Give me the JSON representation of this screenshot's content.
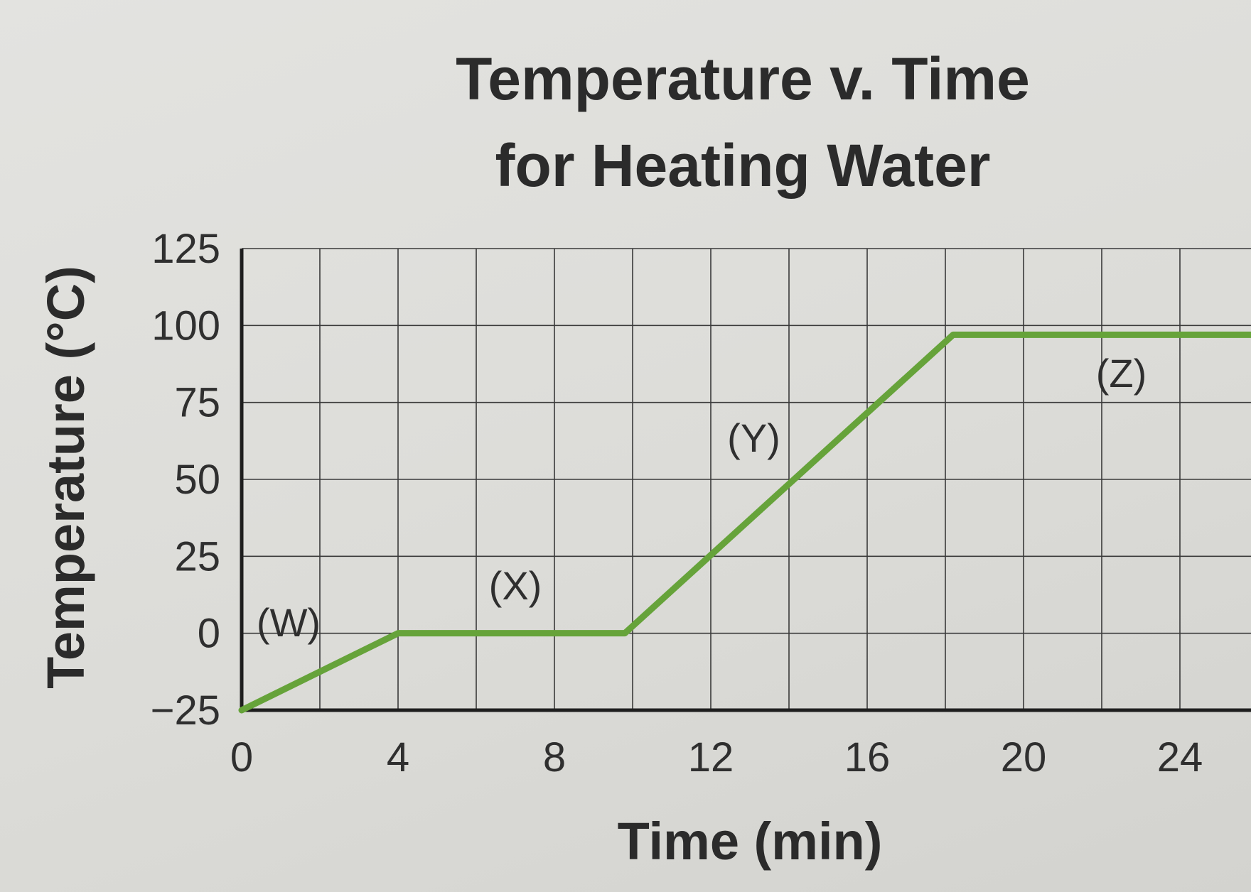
{
  "chart_data": {
    "type": "line",
    "title_lines": [
      "Temperature v. Time",
      "for Heating Water"
    ],
    "xlabel": "Time (min)",
    "ylabel": "Temperature (°C)",
    "xlim": [
      0,
      26
    ],
    "ylim": [
      -25,
      125
    ],
    "x_ticks": [
      "0",
      "4",
      "8",
      "12",
      "16",
      "20",
      "24"
    ],
    "x_tick_values": [
      0,
      4,
      8,
      12,
      16,
      20,
      24
    ],
    "y_ticks": [
      "125",
      "100",
      "75",
      "50",
      "25",
      "0",
      "−25"
    ],
    "y_tick_values": [
      125,
      100,
      75,
      50,
      25,
      0,
      -25
    ],
    "grid": true,
    "series": [
      {
        "x": [
          0,
          4,
          9.8,
          18.2,
          26
        ],
        "y": [
          -25,
          0,
          0,
          97,
          97
        ]
      }
    ],
    "annotations": [
      {
        "text": "(W)",
        "x": 1.2,
        "y": -1
      },
      {
        "text": "(X)",
        "x": 7,
        "y": 11
      },
      {
        "text": "(Y)",
        "x": 13.1,
        "y": 59
      },
      {
        "text": "(Z)",
        "x": 22.5,
        "y": 80
      }
    ],
    "colors": {
      "line": "#66a33a",
      "grid": "#3a3a3a",
      "axis": "#1e1e1e",
      "text": "#2b2b2b"
    }
  }
}
